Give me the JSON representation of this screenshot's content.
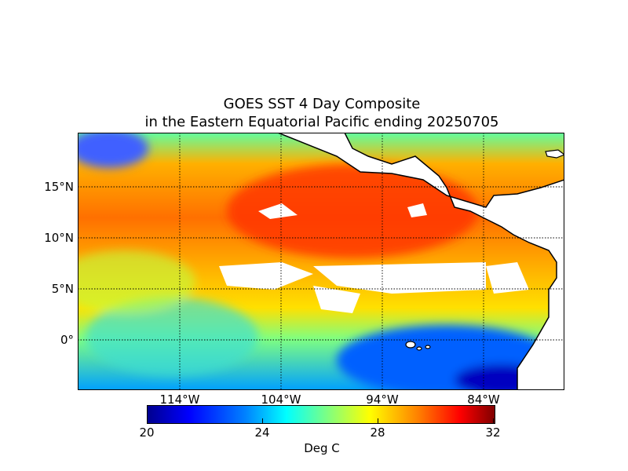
{
  "title_line1": "GOES SST 4 Day Composite",
  "title_line2": "in the Eastern Equatorial Pacific ending 20250705",
  "latitude_labels": [
    "15°N",
    "10°N",
    "5°N",
    "0°"
  ],
  "longitude_labels": [
    "114°W",
    "104°W",
    "94°W",
    "84°W"
  ],
  "colorbar": {
    "ticks": [
      "20",
      "24",
      "28",
      "32"
    ],
    "label": "Deg C",
    "min": 20,
    "max": 32,
    "colormap": "jet"
  },
  "colors": {
    "cold": "#0000ff",
    "mid": "#00ffff",
    "warm": "#ffff00",
    "hot": "#ff0000",
    "land": "#ffffff",
    "missing": "#ffffff"
  }
}
